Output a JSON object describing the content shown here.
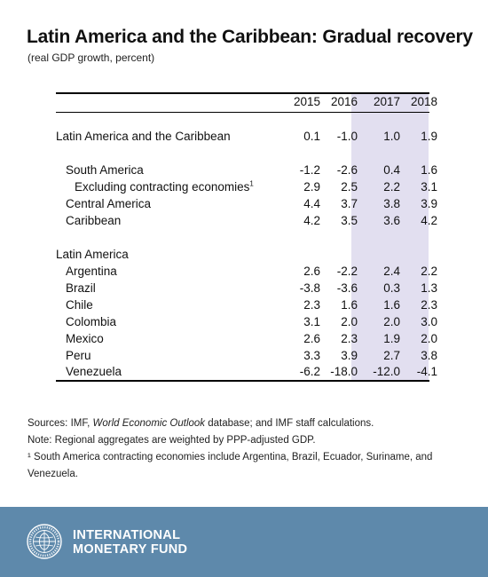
{
  "title": "Latin America and the Caribbean: Gradual recovery",
  "subtitle": "(real GDP growth, percent)",
  "table": {
    "columns": [
      "2015",
      "2016",
      "2017",
      "2018"
    ],
    "rows": [
      {
        "label": "Latin America and the Caribbean",
        "values": [
          "0.1",
          "-1.0",
          "1.0",
          "1.9"
        ]
      },
      {
        "label": "South America",
        "values": [
          "-1.2",
          "-2.6",
          "0.4",
          "1.6"
        ]
      },
      {
        "label": "Excluding contracting economies",
        "label_sup": "1",
        "values": [
          "2.9",
          "2.5",
          "2.2",
          "3.1"
        ]
      },
      {
        "label": "Central America",
        "values": [
          "4.4",
          "3.7",
          "3.8",
          "3.9"
        ]
      },
      {
        "label": "Caribbean",
        "values": [
          "4.2",
          "3.5",
          "3.6",
          "4.2"
        ]
      },
      {
        "label": "Latin America",
        "values": []
      },
      {
        "label": "Argentina",
        "values": [
          "2.6",
          "-2.2",
          "2.4",
          "2.2"
        ]
      },
      {
        "label": "Brazil",
        "values": [
          "-3.8",
          "-3.6",
          "0.3",
          "1.3"
        ]
      },
      {
        "label": "Chile",
        "values": [
          "2.3",
          "1.6",
          "1.6",
          "2.3"
        ]
      },
      {
        "label": "Colombia",
        "values": [
          "3.1",
          "2.0",
          "2.0",
          "3.0"
        ]
      },
      {
        "label": "Mexico",
        "values": [
          "2.6",
          "2.3",
          "1.9",
          "2.0"
        ]
      },
      {
        "label": "Peru",
        "values": [
          "3.3",
          "3.9",
          "2.7",
          "3.8"
        ]
      },
      {
        "label": "Venezuela",
        "values": [
          "-6.2",
          "-18.0",
          "-12.0",
          "-4.1"
        ]
      }
    ],
    "projection_band_color": "#e2dff0"
  },
  "notes": {
    "sources_prefix": "Sources: IMF, ",
    "sources_italic": "World Economic Outlook",
    "sources_suffix": " database; and IMF staff calculations.",
    "note": "Note: Regional aggregates are weighted by PPP-adjusted GDP.",
    "footnote_line1": "¹ South America contracting economies include Argentina, Brazil, Ecuador, Suriname, and",
    "footnote_line2": "Venezuela."
  },
  "footer": {
    "org_line1": "INTERNATIONAL",
    "org_line2": "MONETARY FUND",
    "seal_icon": "imf-seal-icon",
    "background_color": "#5e89ab"
  }
}
